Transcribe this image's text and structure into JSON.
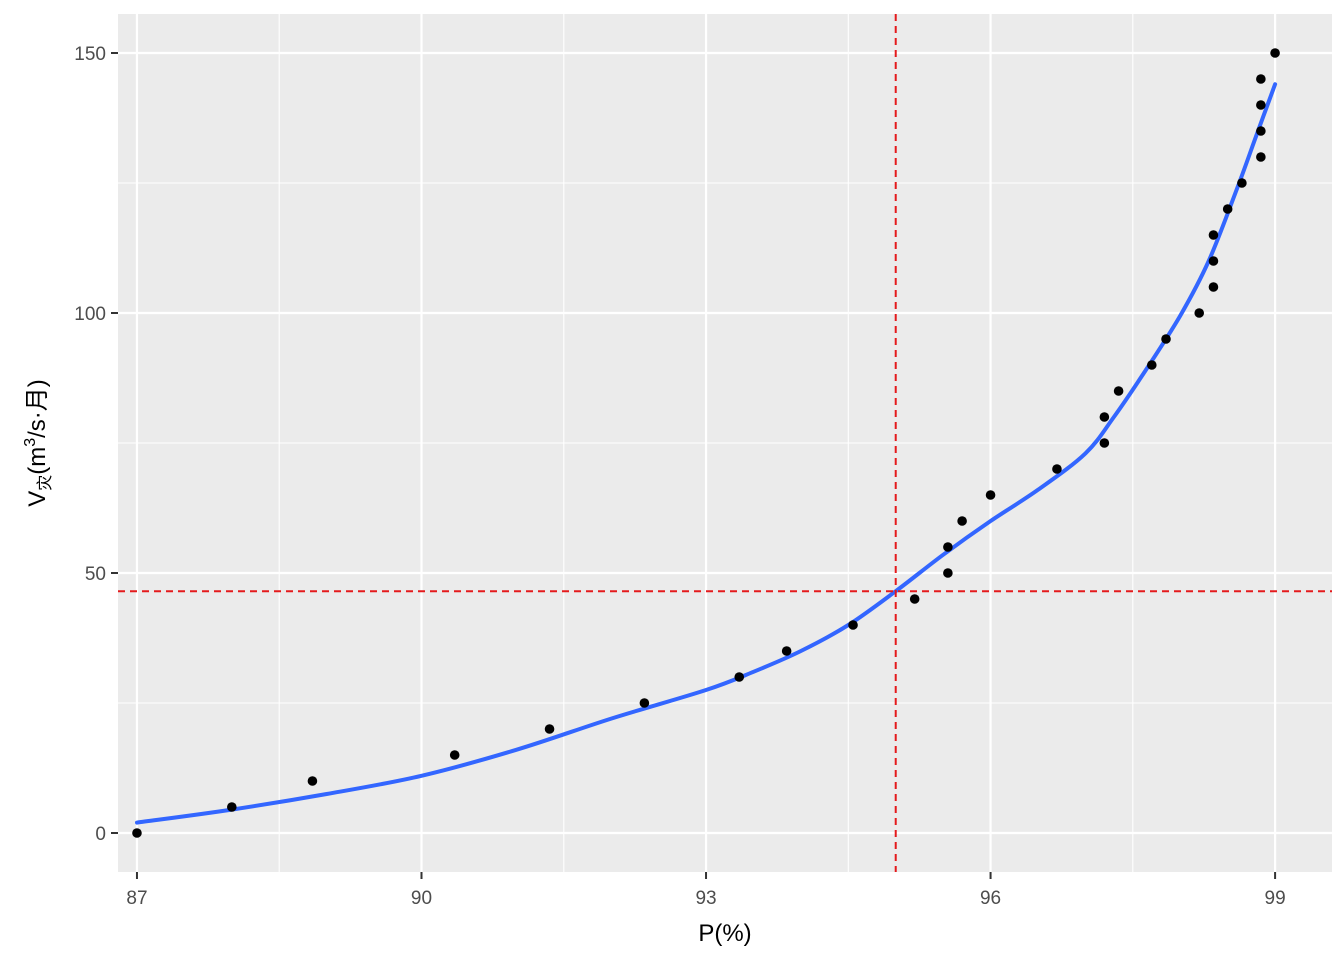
{
  "chart_data": {
    "type": "scatter",
    "title": "",
    "xlabel": "P(%)",
    "ylabel": {
      "prefix": "V",
      "subscript": "灾",
      "unit_open": "(m",
      "unit_sup": "3",
      "unit_close": "/s·月)"
    },
    "xlim": [
      86.8,
      99.6
    ],
    "ylim": [
      -7.5,
      157.5
    ],
    "x_ticks": [
      87,
      90,
      93,
      96,
      99
    ],
    "y_ticks": [
      0,
      50,
      100,
      150
    ],
    "x_tick_labels": [
      "87",
      "90",
      "93",
      "96",
      "99"
    ],
    "y_tick_labels": [
      "0",
      "50",
      "100",
      "150"
    ],
    "grid": true,
    "legend": "none",
    "points": [
      {
        "x": 87.0,
        "y": 0
      },
      {
        "x": 88.0,
        "y": 5
      },
      {
        "x": 88.85,
        "y": 10
      },
      {
        "x": 90.35,
        "y": 15
      },
      {
        "x": 91.35,
        "y": 20
      },
      {
        "x": 92.35,
        "y": 25
      },
      {
        "x": 93.35,
        "y": 30
      },
      {
        "x": 93.85,
        "y": 35
      },
      {
        "x": 94.55,
        "y": 40
      },
      {
        "x": 95.2,
        "y": 45
      },
      {
        "x": 95.55,
        "y": 50
      },
      {
        "x": 95.55,
        "y": 55
      },
      {
        "x": 95.7,
        "y": 60
      },
      {
        "x": 96.0,
        "y": 65
      },
      {
        "x": 96.7,
        "y": 70
      },
      {
        "x": 97.2,
        "y": 75
      },
      {
        "x": 97.2,
        "y": 80
      },
      {
        "x": 97.35,
        "y": 85
      },
      {
        "x": 97.7,
        "y": 90
      },
      {
        "x": 97.85,
        "y": 95
      },
      {
        "x": 98.2,
        "y": 100
      },
      {
        "x": 98.35,
        "y": 105
      },
      {
        "x": 98.35,
        "y": 110
      },
      {
        "x": 98.35,
        "y": 115
      },
      {
        "x": 98.5,
        "y": 120
      },
      {
        "x": 98.65,
        "y": 125
      },
      {
        "x": 98.85,
        "y": 130
      },
      {
        "x": 98.85,
        "y": 135
      },
      {
        "x": 98.85,
        "y": 140
      },
      {
        "x": 98.85,
        "y": 145
      },
      {
        "x": 99.0,
        "y": 150
      }
    ],
    "smooth_curve": {
      "x": [
        87.0,
        88.0,
        89.0,
        90.0,
        91.0,
        92.0,
        93.0,
        93.5,
        94.0,
        94.5,
        95.0,
        95.5,
        96.0,
        96.5,
        97.0,
        97.3,
        97.6,
        98.0,
        98.3,
        98.6,
        98.8,
        99.0
      ],
      "y": [
        2,
        4.5,
        7.5,
        11,
        16,
        22,
        27.5,
        31,
        35,
        40,
        46.5,
        53.5,
        60,
        66,
        73,
        80,
        88,
        99.5,
        110,
        124,
        134,
        144
      ]
    },
    "reference_lines": {
      "vline_x": 95.0,
      "hline_y": 46.5
    },
    "colors": {
      "panel_bg": "#EBEBEB",
      "grid": "#FFFFFF",
      "points": "#000000",
      "curve": "#3366FF",
      "reference": "#E41A1C"
    }
  }
}
